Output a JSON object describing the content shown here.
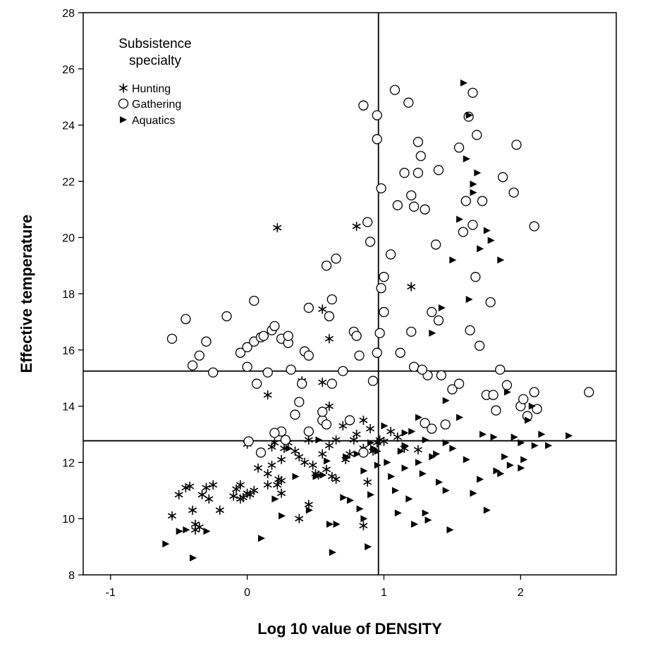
{
  "chart_data": {
    "type": "scatter",
    "xlabel": "Log 10 value of DENSITY",
    "ylabel": "Effective temperature",
    "xlim": [
      -1.2,
      2.7
    ],
    "ylim": [
      8,
      28
    ],
    "x_ticks": [
      -1,
      0,
      1,
      2
    ],
    "y_ticks": [
      8,
      10,
      12,
      14,
      16,
      18,
      20,
      22,
      24,
      26,
      28
    ],
    "reference_lines": {
      "vertical_x": [
        0.96
      ],
      "horizontal_y": [
        15.25,
        12.77
      ]
    },
    "legend": {
      "title_line1": "Subsistence",
      "title_line2": "specialty",
      "entries": [
        "Hunting",
        "Gathering",
        "Aquatics"
      ]
    },
    "series": [
      {
        "name": "Hunting",
        "marker": "star",
        "points": [
          [
            -0.55,
            10.1
          ],
          [
            -0.5,
            10.85
          ],
          [
            -0.45,
            11.1
          ],
          [
            -0.42,
            11.15
          ],
          [
            -0.4,
            10.3
          ],
          [
            -0.38,
            9.8
          ],
          [
            -0.35,
            9.7
          ],
          [
            -0.33,
            10.85
          ],
          [
            -0.3,
            11.1
          ],
          [
            -0.28,
            10.7
          ],
          [
            -0.25,
            11.2
          ],
          [
            -0.2,
            10.3
          ],
          [
            -0.1,
            10.8
          ],
          [
            -0.08,
            11.05
          ],
          [
            -0.05,
            11.2
          ],
          [
            -0.05,
            10.7
          ],
          [
            -0.03,
            10.75
          ],
          [
            0,
            10.9
          ],
          [
            0.02,
            10.85
          ],
          [
            0.05,
            11
          ],
          [
            0.08,
            11.8
          ],
          [
            0.1,
            12.35
          ],
          [
            0.15,
            11.6
          ],
          [
            0.15,
            11.2
          ],
          [
            0.18,
            11.9
          ],
          [
            0.18,
            12.55
          ],
          [
            0.2,
            12.7
          ],
          [
            0.22,
            11.2
          ],
          [
            0.23,
            11.4
          ],
          [
            0.25,
            10.9
          ],
          [
            0.25,
            12.1
          ],
          [
            0.27,
            12.5
          ],
          [
            0.3,
            12.7
          ],
          [
            0.35,
            12.4
          ],
          [
            0.38,
            12.2
          ],
          [
            0.4,
            14.9
          ],
          [
            0.42,
            12
          ],
          [
            0.45,
            12.8
          ],
          [
            0.45,
            10.5
          ],
          [
            0.48,
            11.9
          ],
          [
            0.5,
            11.6
          ],
          [
            0.52,
            11.55
          ],
          [
            0.55,
            12.3
          ],
          [
            0.55,
            17.45
          ],
          [
            0.58,
            11.75
          ],
          [
            0.6,
            12.6
          ],
          [
            0.62,
            11.5
          ],
          [
            0.65,
            11.4
          ],
          [
            0.65,
            12.8
          ],
          [
            0.7,
            13.3
          ],
          [
            0.72,
            12.1
          ],
          [
            0.75,
            12.3
          ],
          [
            0.78,
            12.8
          ],
          [
            0.8,
            13
          ],
          [
            0.8,
            20.4
          ],
          [
            0.85,
            13.5
          ],
          [
            0.85,
            12.5
          ],
          [
            0.88,
            11.3
          ],
          [
            0.9,
            13.2
          ],
          [
            0.92,
            12.4
          ],
          [
            0.95,
            12.7
          ],
          [
            0.97,
            12.8
          ],
          [
            1.0,
            12.75
          ],
          [
            1.05,
            13.1
          ],
          [
            1.1,
            12.9
          ],
          [
            1.15,
            12.5
          ],
          [
            1.2,
            18.25
          ],
          [
            1.25,
            12.45
          ],
          [
            0.22,
            20.35
          ],
          [
            0.15,
            14.4
          ],
          [
            0.6,
            16.4
          ],
          [
            0.6,
            14
          ],
          [
            0.55,
            14.85
          ],
          [
            0.85,
            9.75
          ],
          [
            0.38,
            10.0
          ],
          [
            0.25,
            11.35
          ],
          [
            -0.38,
            9.6
          ],
          [
            0,
            12.65
          ]
        ]
      },
      {
        "name": "Gathering",
        "marker": "circle",
        "points": [
          [
            -0.55,
            16.4
          ],
          [
            -0.45,
            17.1
          ],
          [
            -0.4,
            15.45
          ],
          [
            -0.35,
            15.8
          ],
          [
            -0.3,
            16.3
          ],
          [
            -0.25,
            15.2
          ],
          [
            -0.15,
            17.2
          ],
          [
            -0.05,
            15.9
          ],
          [
            0,
            16.1
          ],
          [
            0,
            15.4
          ],
          [
            0.05,
            16.3
          ],
          [
            0.05,
            17.75
          ],
          [
            0.07,
            14.8
          ],
          [
            0.1,
            16.45
          ],
          [
            0.12,
            16.5
          ],
          [
            0.15,
            15.2
          ],
          [
            0.18,
            16.7
          ],
          [
            0.2,
            16.85
          ],
          [
            0.25,
            16.4
          ],
          [
            0.3,
            16.25
          ],
          [
            0.3,
            16.5
          ],
          [
            0.32,
            15.3
          ],
          [
            0.38,
            14.15
          ],
          [
            0.4,
            14.8
          ],
          [
            0.42,
            15.95
          ],
          [
            0.45,
            15.8
          ],
          [
            0.45,
            17.5
          ],
          [
            0.55,
            13.5
          ],
          [
            0.55,
            13.8
          ],
          [
            0.58,
            13.35
          ],
          [
            0.58,
            19
          ],
          [
            0.6,
            17.2
          ],
          [
            0.62,
            17.8
          ],
          [
            0.62,
            14.8
          ],
          [
            0.65,
            19.25
          ],
          [
            0.7,
            15.25
          ],
          [
            0.75,
            13.5
          ],
          [
            0.78,
            16.65
          ],
          [
            0.8,
            16.5
          ],
          [
            0.82,
            15.8
          ],
          [
            0.85,
            24.7
          ],
          [
            0.88,
            20.55
          ],
          [
            0.9,
            19.85
          ],
          [
            0.92,
            14.9
          ],
          [
            0.95,
            23.5
          ],
          [
            0.95,
            24.35
          ],
          [
            0.95,
            15.9
          ],
          [
            0.97,
            16.6
          ],
          [
            0.98,
            21.75
          ],
          [
            0.98,
            18.2
          ],
          [
            1.0,
            18.6
          ],
          [
            1.0,
            17.35
          ],
          [
            1.05,
            19.4
          ],
          [
            1.08,
            25.25
          ],
          [
            1.1,
            21.15
          ],
          [
            1.12,
            15.9
          ],
          [
            1.15,
            22.3
          ],
          [
            1.18,
            24.8
          ],
          [
            1.2,
            21.5
          ],
          [
            1.2,
            16.65
          ],
          [
            1.22,
            21.1
          ],
          [
            1.25,
            23.4
          ],
          [
            1.25,
            22.3
          ],
          [
            1.27,
            22.9
          ],
          [
            1.3,
            21.0
          ],
          [
            1.32,
            15.1
          ],
          [
            1.35,
            17.35
          ],
          [
            1.38,
            19.75
          ],
          [
            1.4,
            22.4
          ],
          [
            1.4,
            17.05
          ],
          [
            1.42,
            15.1
          ],
          [
            1.45,
            13.35
          ],
          [
            1.5,
            14.6
          ],
          [
            1.55,
            23.2
          ],
          [
            1.55,
            14.8
          ],
          [
            1.58,
            20.2
          ],
          [
            1.6,
            21.3
          ],
          [
            1.62,
            24.3
          ],
          [
            1.63,
            16.7
          ],
          [
            1.65,
            25.15
          ],
          [
            1.65,
            20.45
          ],
          [
            1.67,
            18.6
          ],
          [
            1.68,
            23.65
          ],
          [
            1.7,
            16.15
          ],
          [
            1.72,
            21.3
          ],
          [
            1.75,
            14.4
          ],
          [
            1.78,
            17.7
          ],
          [
            1.8,
            14.4
          ],
          [
            1.82,
            13.85
          ],
          [
            1.85,
            15.3
          ],
          [
            1.87,
            22.15
          ],
          [
            1.9,
            14.75
          ],
          [
            1.95,
            21.6
          ],
          [
            1.97,
            23.3
          ],
          [
            2.0,
            14.0
          ],
          [
            2.02,
            14.25
          ],
          [
            2.05,
            13.65
          ],
          [
            2.1,
            14.5
          ],
          [
            2.1,
            20.4
          ],
          [
            2.12,
            13.9
          ],
          [
            2.5,
            14.5
          ],
          [
            0.25,
            13.1
          ],
          [
            0.35,
            13.7
          ],
          [
            0.45,
            13.1
          ],
          [
            0.85,
            12.35
          ],
          [
            1.22,
            15.4
          ],
          [
            1.28,
            15.3
          ],
          [
            1.3,
            13.4
          ],
          [
            1.35,
            13.2
          ],
          [
            0.28,
            12.8
          ],
          [
            0.01,
            12.75
          ],
          [
            0.2,
            13.05
          ],
          [
            0.1,
            12.35
          ]
        ]
      },
      {
        "name": "Aquatics",
        "marker": "triangle",
        "points": [
          [
            -0.6,
            9.1
          ],
          [
            -0.5,
            9.55
          ],
          [
            -0.45,
            9.6
          ],
          [
            -0.4,
            8.6
          ],
          [
            -0.3,
            9.55
          ],
          [
            0.1,
            9.3
          ],
          [
            0.2,
            10.7
          ],
          [
            0.25,
            10.1
          ],
          [
            0.3,
            12.5
          ],
          [
            0.35,
            11.5
          ],
          [
            0.45,
            10.3
          ],
          [
            0.5,
            11.5
          ],
          [
            0.55,
            11.55
          ],
          [
            0.58,
            12.05
          ],
          [
            0.6,
            9.8
          ],
          [
            0.62,
            8.8
          ],
          [
            0.65,
            9.8
          ],
          [
            0.7,
            10.75
          ],
          [
            0.75,
            10.65
          ],
          [
            0.8,
            12.3
          ],
          [
            0.82,
            10.35
          ],
          [
            0.85,
            10.0
          ],
          [
            0.88,
            9.0
          ],
          [
            0.9,
            10.85
          ],
          [
            0.92,
            12.5
          ],
          [
            0.95,
            12.4
          ],
          [
            1.0,
            13.3
          ],
          [
            1.02,
            12.0
          ],
          [
            1.05,
            11.5
          ],
          [
            1.08,
            11.0
          ],
          [
            1.1,
            10.2
          ],
          [
            1.12,
            12.4
          ],
          [
            1.15,
            11.8
          ],
          [
            1.18,
            10.7
          ],
          [
            1.2,
            13.1
          ],
          [
            1.22,
            9.8
          ],
          [
            1.25,
            12.0
          ],
          [
            1.28,
            11.6
          ],
          [
            1.3,
            10.2
          ],
          [
            1.32,
            9.95
          ],
          [
            1.35,
            16.6
          ],
          [
            1.38,
            12.3
          ],
          [
            1.4,
            11.3
          ],
          [
            1.42,
            17.5
          ],
          [
            1.45,
            11.0
          ],
          [
            1.48,
            9.6
          ],
          [
            1.5,
            12.5
          ],
          [
            1.5,
            19.2
          ],
          [
            1.55,
            20.65
          ],
          [
            1.58,
            25.5
          ],
          [
            1.6,
            22.8
          ],
          [
            1.62,
            24.35
          ],
          [
            1.62,
            17.8
          ],
          [
            1.65,
            21.6
          ],
          [
            1.65,
            21.9
          ],
          [
            1.68,
            22.3
          ],
          [
            1.7,
            19.6
          ],
          [
            1.72,
            13.0
          ],
          [
            1.75,
            20.25
          ],
          [
            1.78,
            19.9
          ],
          [
            1.8,
            12.9
          ],
          [
            1.82,
            11.7
          ],
          [
            1.85,
            19.2
          ],
          [
            1.88,
            12.2
          ],
          [
            1.9,
            14.5
          ],
          [
            1.92,
            11.9
          ],
          [
            1.95,
            12.9
          ],
          [
            2.0,
            12.7
          ],
          [
            2.02,
            12.1
          ],
          [
            2.05,
            13.5
          ],
          [
            2.08,
            14.0
          ],
          [
            2.1,
            12.6
          ],
          [
            2.15,
            13.0
          ],
          [
            2.2,
            12.6
          ],
          [
            2.35,
            12.95
          ],
          [
            1.75,
            10.3
          ],
          [
            1.55,
            13.6
          ],
          [
            1.45,
            12.7
          ],
          [
            1.3,
            12.8
          ],
          [
            1.15,
            12.6
          ],
          [
            0.9,
            12.7
          ],
          [
            0.72,
            12.2
          ],
          [
            0.52,
            12.8
          ],
          [
            1.25,
            13.6
          ],
          [
            1.35,
            12.2
          ],
          [
            1.6,
            12.1
          ],
          [
            1.7,
            11.4
          ],
          [
            1.85,
            11.6
          ],
          [
            2.0,
            11.8
          ],
          [
            1.65,
            10.9
          ],
          [
            1.15,
            13.05
          ],
          [
            1.45,
            14.2
          ],
          [
            0.95,
            11.9
          ],
          [
            0.85,
            11.7
          ]
        ]
      }
    ]
  }
}
